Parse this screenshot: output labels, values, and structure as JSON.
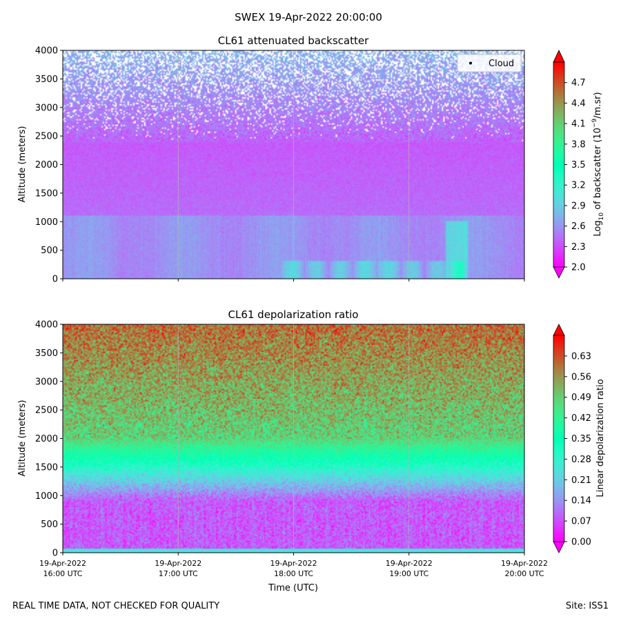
{
  "figure": {
    "suptitle": "SWEX 19-Apr-2022 20:00:00",
    "footer_left": "REAL TIME DATA, NOT CHECKED FOR QUALITY",
    "footer_right": "Site: ISS1"
  },
  "chart_data": [
    {
      "type": "heatmap",
      "title": "CL61 attenuated backscatter",
      "ylabel": "Altitude (meters)",
      "xlabel": "",
      "ylim": [
        0,
        4000
      ],
      "yticks": [
        "0",
        "500",
        "1000",
        "1500",
        "2000",
        "2500",
        "3000",
        "3500",
        "4000"
      ],
      "colorbar": {
        "label_prefix": "Log",
        "label_sub": "10",
        "label_mid": " of backscatter (10",
        "label_sup": "−9",
        "label_suffix": "/m.sr)",
        "range": [
          2.0,
          5.0
        ],
        "ticks": [
          "2.0",
          "2.3",
          "2.6",
          "2.9",
          "3.2",
          "3.5",
          "3.8",
          "4.1",
          "4.4",
          "4.7"
        ],
        "extend": "both",
        "colormap": "rainbow"
      },
      "legend": {
        "label": "Cloud",
        "location": "top-right"
      }
    },
    {
      "type": "heatmap",
      "title": "CL61 depolarization ratio",
      "ylabel": "Altitude (meters)",
      "xlabel": "Time (UTC)",
      "ylim": [
        0,
        4000
      ],
      "yticks": [
        "0",
        "500",
        "1000",
        "1500",
        "2000",
        "2500",
        "3000",
        "3500",
        "4000"
      ],
      "xticks": [
        {
          "date": "19-Apr-2022",
          "time": "16:00 UTC"
        },
        {
          "date": "19-Apr-2022",
          "time": "17:00 UTC"
        },
        {
          "date": "19-Apr-2022",
          "time": "18:00 UTC"
        },
        {
          "date": "19-Apr-2022",
          "time": "19:00 UTC"
        },
        {
          "date": "19-Apr-2022",
          "time": "20:00 UTC"
        }
      ],
      "colorbar": {
        "label": "Linear depolarization ratio",
        "range": [
          0.0,
          0.7
        ],
        "ticks": [
          "0.00",
          "0.07",
          "0.14",
          "0.21",
          "0.28",
          "0.35",
          "0.42",
          "0.49",
          "0.56",
          "0.63"
        ],
        "extend": "both",
        "colormap": "rainbow"
      }
    }
  ]
}
